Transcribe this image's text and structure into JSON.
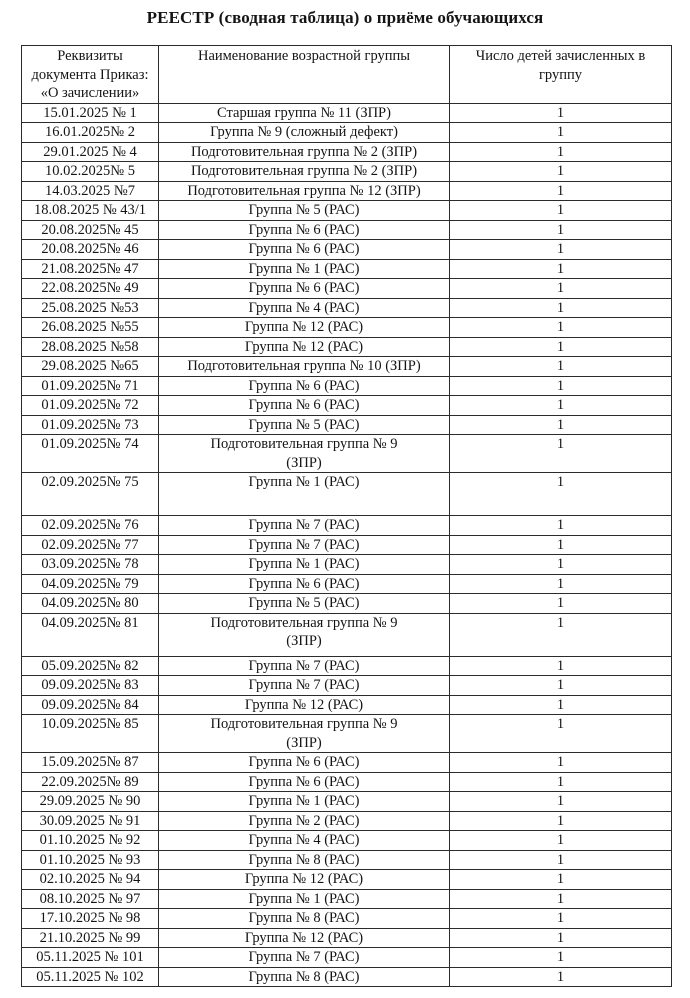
{
  "title": "РЕЕСТР (сводная таблица) о приёме обучающихся",
  "colors": {
    "background": "#ffffff",
    "text": "#141414",
    "border": "#2b2b2b"
  },
  "table": {
    "columns": [
      "Реквизиты документа Приказ: «О зачислении»",
      "Наименование возрастной группы",
      "Число детей зачисленных в группу"
    ],
    "rows": [
      {
        "doc": "15.01.2025 № 1",
        "group": "Старшая группа № 11 (ЗПР)",
        "count": "1"
      },
      {
        "doc": "16.01.2025№ 2",
        "group": "Группа № 9 (сложный дефект)",
        "count": "1"
      },
      {
        "doc": "29.01.2025 № 4",
        "group": "Подготовительная группа № 2 (ЗПР)",
        "count": "1"
      },
      {
        "doc": "10.02.2025№ 5",
        "group": "Подготовительная группа № 2 (ЗПР)",
        "count": "1"
      },
      {
        "doc": "14.03.2025 №7",
        "group": "Подготовительная группа № 12 (ЗПР)",
        "count": "1"
      },
      {
        "doc": "18.08.2025 № 43/1",
        "group": "Группа № 5 (РАС)",
        "count": "1"
      },
      {
        "doc": "20.08.2025№ 45",
        "group": "Группа № 6 (РАС)",
        "count": "1"
      },
      {
        "doc": "20.08.2025№ 46",
        "group": "Группа № 6 (РАС)",
        "count": "1"
      },
      {
        "doc": "21.08.2025№ 47",
        "group": "Группа № 1 (РАС)",
        "count": "1"
      },
      {
        "doc": "22.08.2025№ 49",
        "group": "Группа № 6 (РАС)",
        "count": "1"
      },
      {
        "doc": "25.08.2025 №53",
        "group": "Группа № 4 (РАС)",
        "count": "1"
      },
      {
        "doc": "26.08.2025 №55",
        "group": "Группа № 12 (РАС)",
        "count": "1"
      },
      {
        "doc": "28.08.2025 №58",
        "group": "Группа № 12 (РАС)",
        "count": "1"
      },
      {
        "doc": "29.08.2025 №65",
        "group": "Подготовительная группа № 10 (ЗПР)",
        "count": "1"
      },
      {
        "doc": "01.09.2025№ 71",
        "group": "Группа № 6 (РАС)",
        "count": "1"
      },
      {
        "doc": "01.09.2025№ 72",
        "group": "Группа № 6 (РАС)",
        "count": "1"
      },
      {
        "doc": "01.09.2025№ 73",
        "group": "Группа № 5 (РАС)",
        "count": "1"
      },
      {
        "doc": "01.09.2025№ 74",
        "group": "Подготовительная группа № 9\n(ЗПР)",
        "count": "1"
      },
      {
        "doc": "02.09.2025№ 75",
        "group": "Группа № 1 (РАС)",
        "count": "1",
        "tall": true
      },
      {
        "doc": "02.09.2025№ 76",
        "group": "Группа № 7 (РАС)",
        "count": "1"
      },
      {
        "doc": "02.09.2025№ 77",
        "group": "Группа № 7 (РАС)",
        "count": "1"
      },
      {
        "doc": "03.09.2025№ 78",
        "group": "Группа № 1 (РАС)",
        "count": "1"
      },
      {
        "doc": "04.09.2025№ 79",
        "group": "Группа № 6 (РАС)",
        "count": "1"
      },
      {
        "doc": "04.09.2025№ 80",
        "group": "Группа № 5 (РАС)",
        "count": "1"
      },
      {
        "doc": "04.09.2025№ 81",
        "group": "Подготовительная группа № 9\n(ЗПР)",
        "count": "1",
        "tall": true
      },
      {
        "doc": "05.09.2025№ 82",
        "group": "Группа № 7 (РАС)",
        "count": "1"
      },
      {
        "doc": "09.09.2025№ 83",
        "group": "Группа № 7 (РАС)",
        "count": "1"
      },
      {
        "doc": "09.09.2025№ 84",
        "group": "Группа № 12 (РАС)",
        "count": "1"
      },
      {
        "doc": "10.09.2025№ 85",
        "group": "Подготовительная группа № 9\n(ЗПР)",
        "count": "1"
      },
      {
        "doc": "15.09.2025№ 87",
        "group": "Группа № 6 (РАС)",
        "count": "1"
      },
      {
        "doc": "22.09.2025№ 89",
        "group": "Группа № 6 (РАС)",
        "count": "1"
      },
      {
        "doc": "29.09.2025 № 90",
        "group": "Группа № 1 (РАС)",
        "count": "1"
      },
      {
        "doc": "30.09.2025 № 91",
        "group": "Группа № 2 (РАС)",
        "count": "1"
      },
      {
        "doc": "01.10.2025 № 92",
        "group": "Группа № 4 (РАС)",
        "count": "1"
      },
      {
        "doc": "01.10.2025 № 93",
        "group": "Группа № 8 (РАС)",
        "count": "1"
      },
      {
        "doc": "02.10.2025 № 94",
        "group": "Группа № 12 (РАС)",
        "count": "1"
      },
      {
        "doc": "08.10.2025 № 97",
        "group": "Группа № 1 (РАС)",
        "count": "1"
      },
      {
        "doc": "17.10.2025 № 98",
        "group": "Группа № 8 (РАС)",
        "count": "1"
      },
      {
        "doc": "21.10.2025 № 99",
        "group": "Группа № 12 (РАС)",
        "count": "1"
      },
      {
        "doc": "05.11.2025 № 101",
        "group": "Группа № 7 (РАС)",
        "count": "1"
      },
      {
        "doc": "05.11.2025 № 102",
        "group": "Группа № 8 (РАС)",
        "count": "1"
      }
    ]
  }
}
